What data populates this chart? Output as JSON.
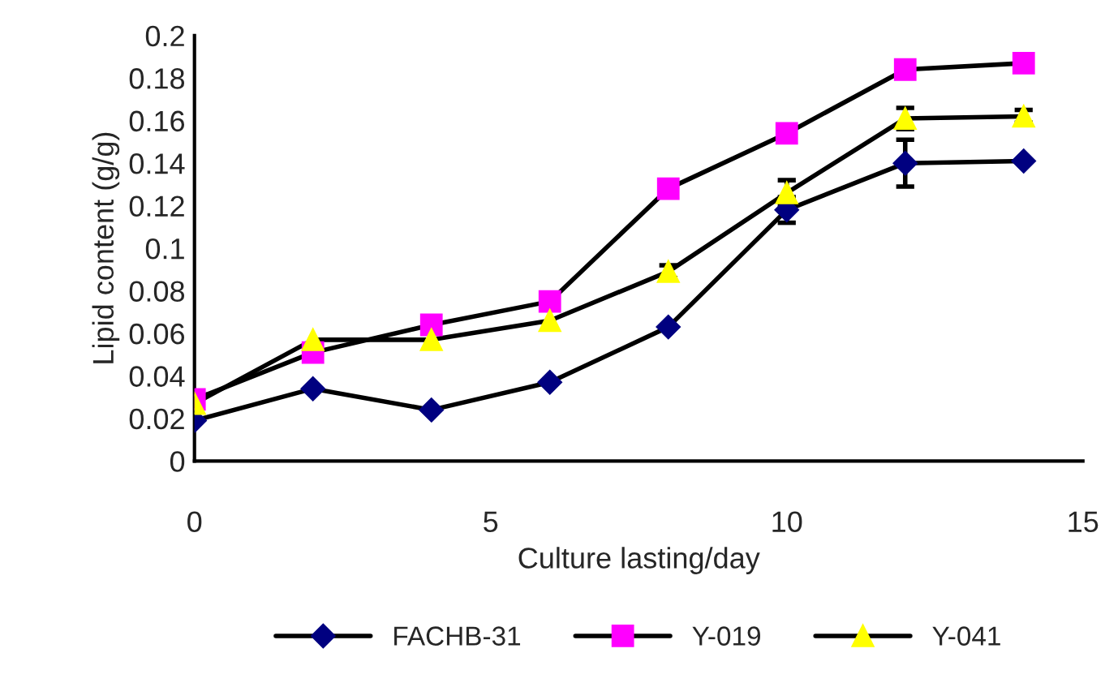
{
  "chart_data": {
    "type": "line",
    "xlabel": "Culture lasting/day",
    "ylabel": "Lipid content (g/g)",
    "x": [
      0,
      2,
      4,
      6,
      8,
      10,
      12,
      14
    ],
    "series": [
      {
        "name": "FACHB-31",
        "color": "#000080",
        "marker": "diamond",
        "values": [
          0.019,
          0.034,
          0.024,
          0.037,
          0.063,
          0.118,
          0.14,
          0.141
        ],
        "errors": [
          null,
          null,
          null,
          null,
          null,
          0.006,
          0.011,
          null
        ]
      },
      {
        "name": "Y-019",
        "color": "#ff00ff",
        "marker": "square",
        "values": [
          0.029,
          0.051,
          0.064,
          0.075,
          0.128,
          0.154,
          0.184,
          0.187
        ]
      },
      {
        "name": "Y-041",
        "color": "#ffff00",
        "marker": "triangle",
        "values": [
          0.027,
          0.057,
          0.057,
          0.066,
          0.089,
          0.126,
          0.161,
          0.162
        ],
        "errors": [
          null,
          null,
          null,
          null,
          0.003,
          0.006,
          0.005,
          0.003
        ]
      }
    ],
    "xlim": [
      0,
      15
    ],
    "xticks": [
      0,
      5,
      10,
      15
    ],
    "ylim": [
      0,
      0.2
    ],
    "yticks": [
      0,
      0.02,
      0.04,
      0.06,
      0.08,
      0.1,
      0.12,
      0.14,
      0.16,
      0.18,
      0.2
    ],
    "grid": false,
    "legend": "bottom",
    "line_style": "solid"
  }
}
